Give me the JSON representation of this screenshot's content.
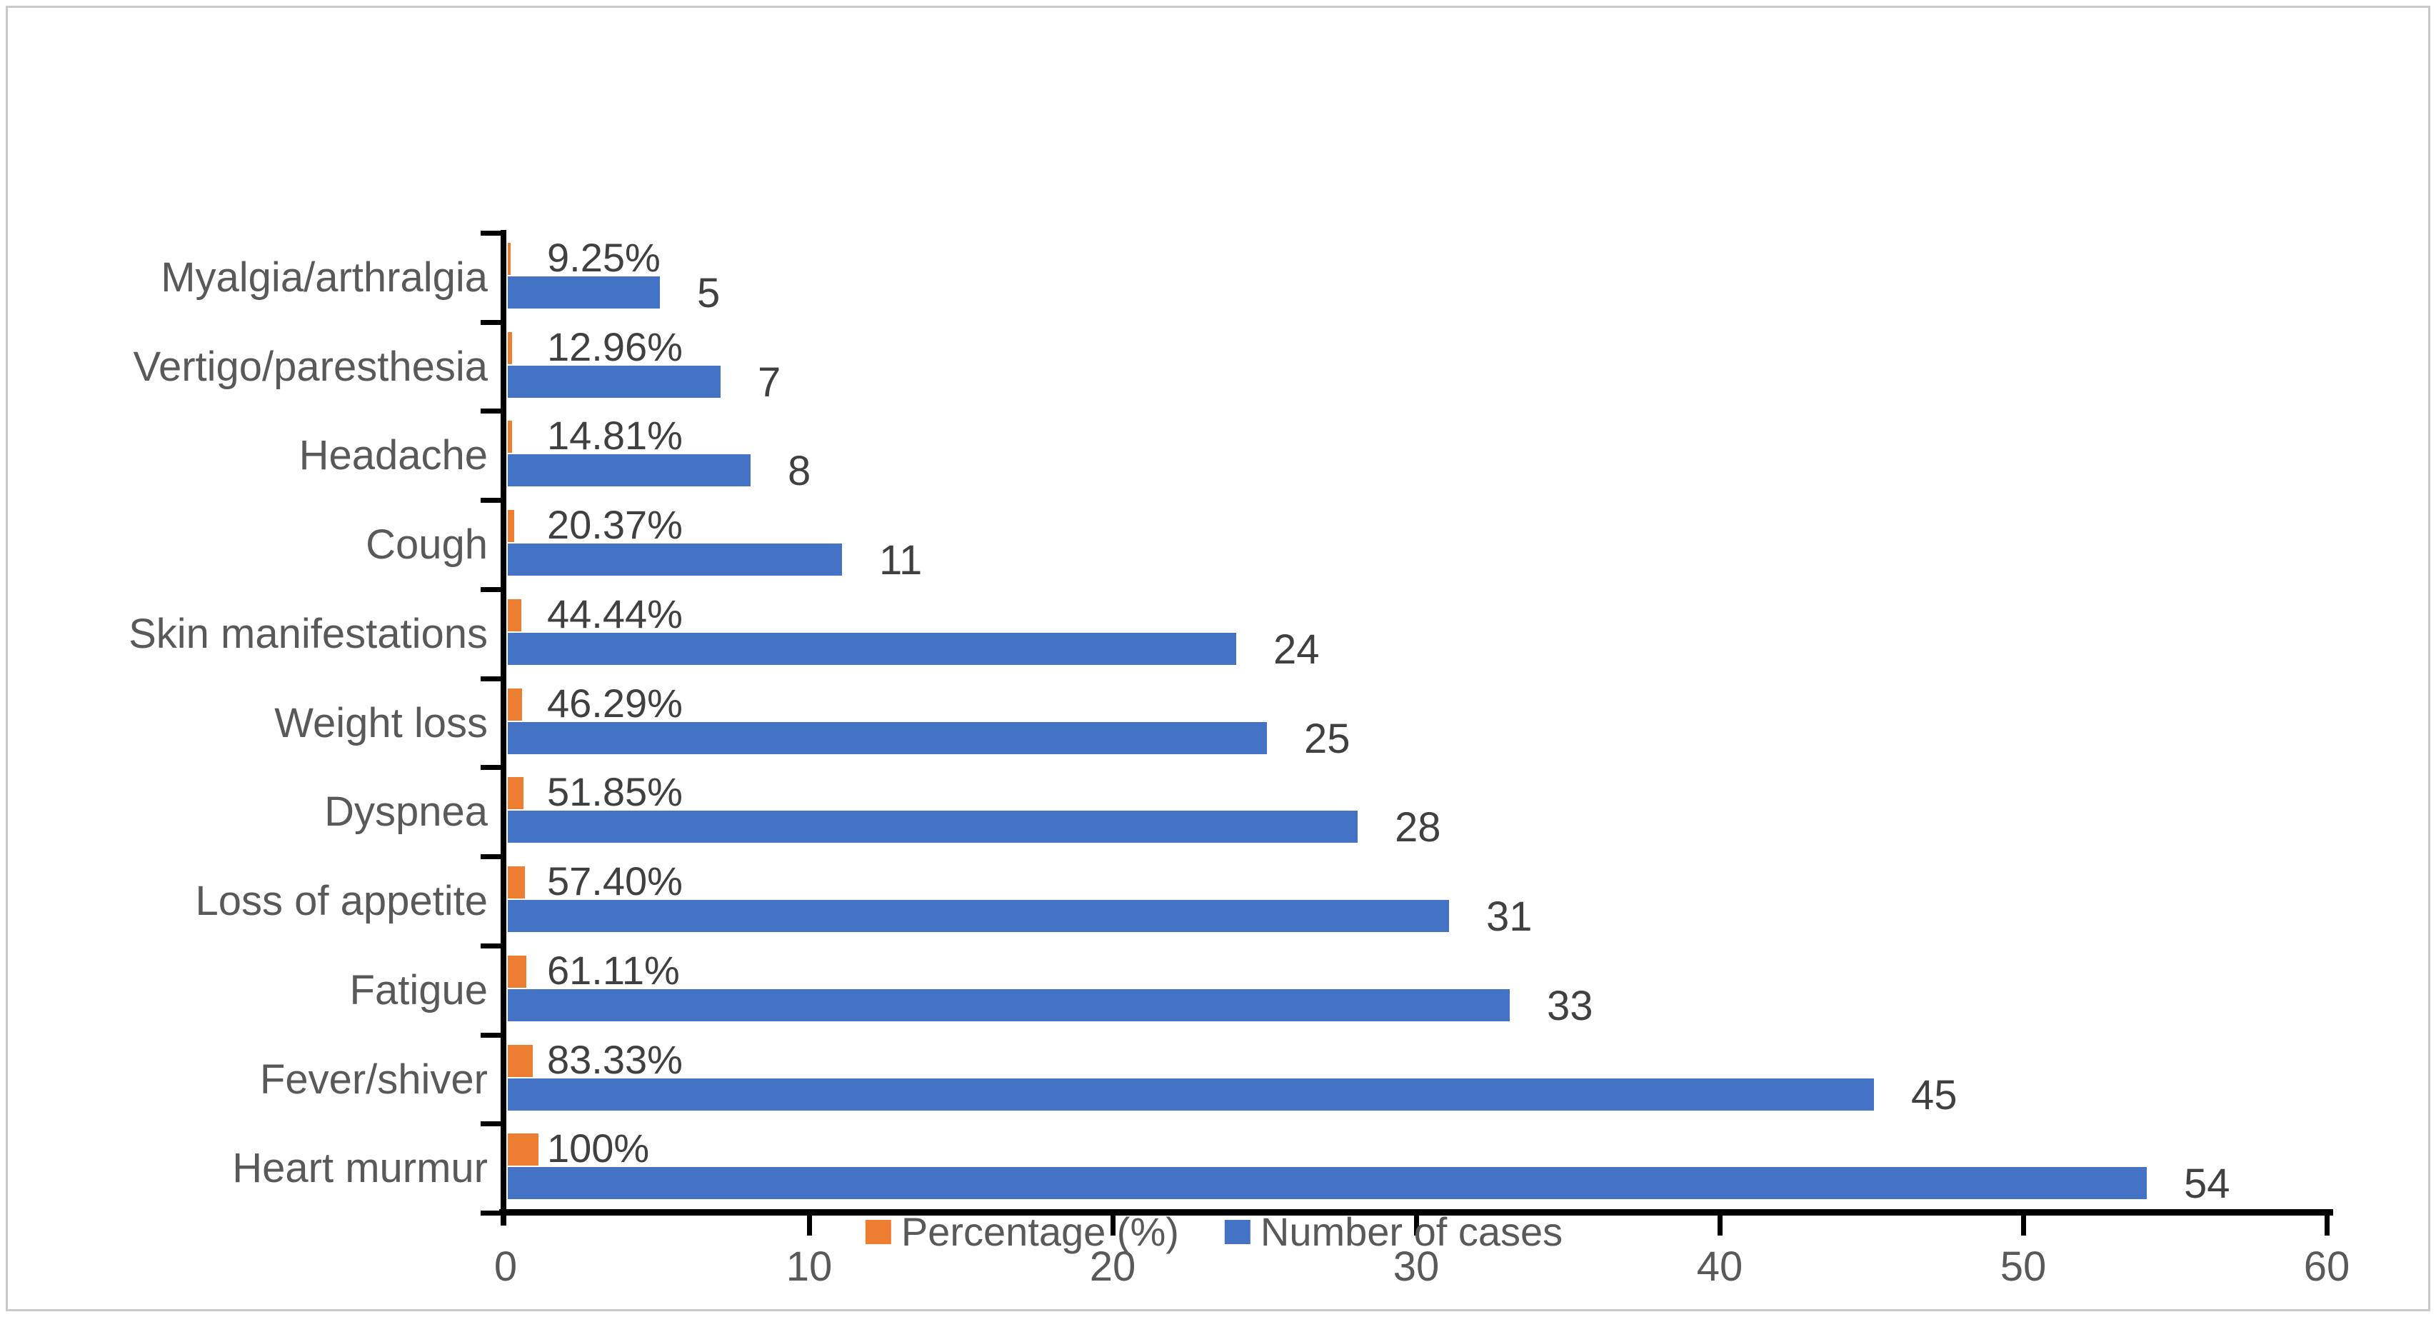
{
  "chart_data": {
    "type": "bar",
    "orientation": "horizontal",
    "title": "",
    "categories": [
      "Myalgia/arthralgia",
      "Vertigo/paresthesia",
      "Headache",
      "Cough",
      "Skin manifestations",
      "Weight loss",
      "Dyspnea",
      "Loss of appetite",
      "Fatigue",
      "Fever/shiver",
      "Heart murmur"
    ],
    "series": [
      {
        "name": "Percentage (%)",
        "color": "#ED7D31",
        "values": [
          9.25,
          12.96,
          14.81,
          20.37,
          44.44,
          46.29,
          51.85,
          57.4,
          61.11,
          83.33,
          100
        ],
        "labels": [
          "9.25%",
          "12.96%",
          "14.81%",
          "20.37%",
          "44.44%",
          "46.29%",
          "51.85%",
          "57.40%",
          "61.11%",
          "83.33%",
          "100%"
        ],
        "plotted_as": "value divided by 100 on the x-axis"
      },
      {
        "name": "Number of cases",
        "color": "#4472C4",
        "values": [
          5,
          7,
          8,
          11,
          24,
          25,
          28,
          31,
          33,
          45,
          54
        ],
        "labels": [
          "5",
          "7",
          "8",
          "11",
          "24",
          "25",
          "28",
          "31",
          "33",
          "45",
          "54"
        ]
      }
    ],
    "xlabel": "",
    "ylabel": "",
    "x_ticks": [
      "0",
      "10",
      "20",
      "30",
      "40",
      "50",
      "60"
    ],
    "xlim": [
      0,
      60
    ],
    "legend_position": "bottom",
    "grid": false
  },
  "colors": {
    "bar_blue": "#4472C4",
    "bar_orange": "#ED7D31",
    "axis_line": "#000000",
    "axis_text": "#595959",
    "data_label_text": "#404040",
    "frame_border": "#C9C9C9",
    "background": "#FFFFFF"
  }
}
